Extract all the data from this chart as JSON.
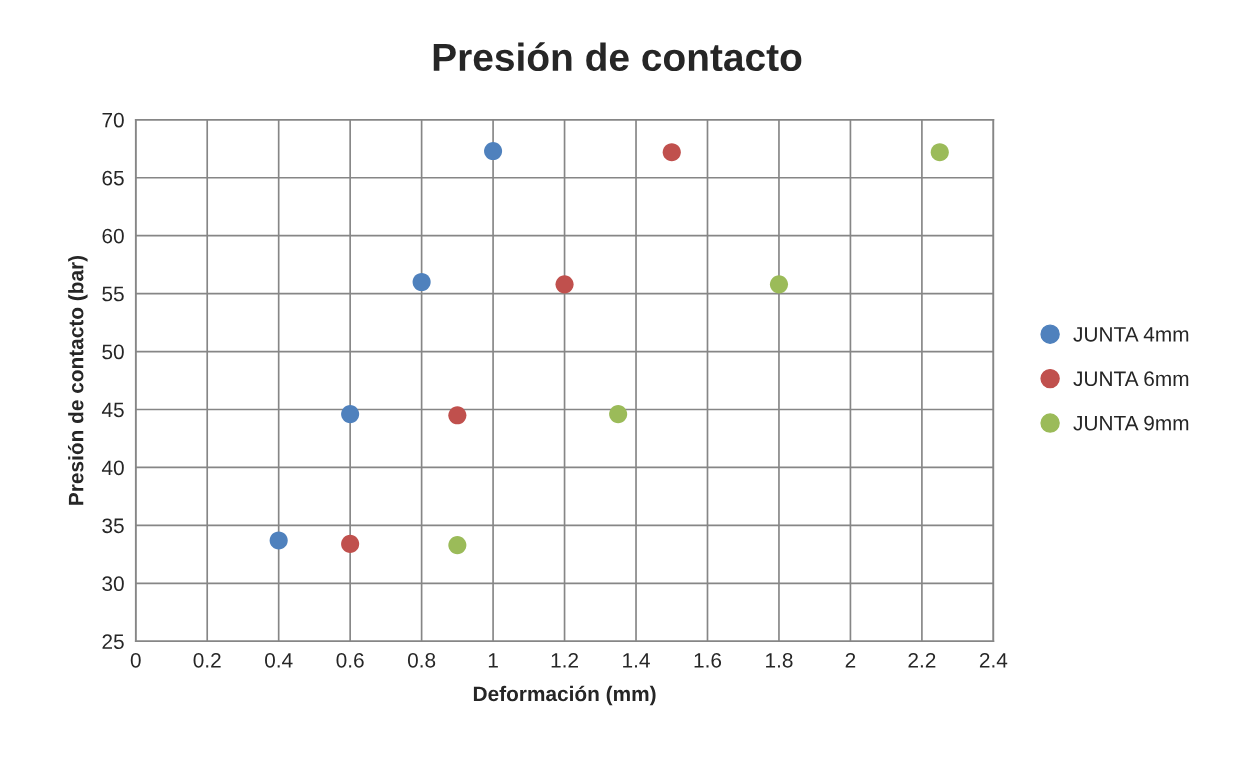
{
  "chart_data": {
    "type": "scatter",
    "title": "Presión de contacto",
    "xlabel": "Deformación (mm)",
    "ylabel": "Presión de contacto (bar)",
    "series": [
      {
        "name": "JUNTA 4mm",
        "color": "#4f81bd",
        "x": [
          0.4,
          0.6,
          0.8,
          1.0
        ],
        "values": [
          33.7,
          44.6,
          56.0,
          67.3
        ]
      },
      {
        "name": "JUNTA 6mm",
        "color": "#c0504d",
        "x": [
          0.6,
          0.9,
          1.2,
          1.5
        ],
        "values": [
          33.4,
          44.5,
          55.8,
          67.2
        ]
      },
      {
        "name": "JUNTA 9mm",
        "color": "#9bbb59",
        "x": [
          0.9,
          1.35,
          1.8,
          2.25
        ],
        "values": [
          33.3,
          44.6,
          55.8,
          67.2
        ]
      }
    ],
    "xlim": [
      0,
      2.4
    ],
    "xticks": [
      0,
      0.2,
      0.4,
      0.6,
      0.8,
      1,
      1.2,
      1.4,
      1.6,
      1.8,
      2,
      2.2,
      2.4
    ],
    "ylim": [
      25,
      70
    ],
    "yticks": [
      25,
      30,
      35,
      40,
      45,
      50,
      55,
      60,
      65,
      70
    ],
    "grid": true,
    "legend": "right",
    "marker": "circle"
  }
}
